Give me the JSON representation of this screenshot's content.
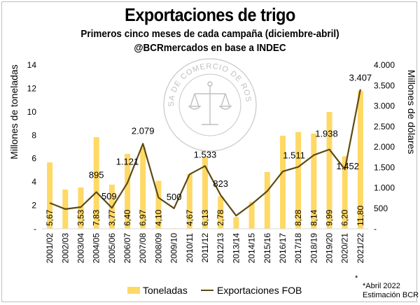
{
  "header": {
    "title": "Exportaciones de trigo",
    "subtitle1": "Primeros cinco meses de cada campaña (diciembre-abril)",
    "subtitle2": "@BCRmercados en base a INDEC"
  },
  "watermark": {
    "text_top": "BOLSA DE COMERCIO DE ROSARIO",
    "icon": "scales-of-justice-icon"
  },
  "chart_data": {
    "type": "bar+line",
    "categories": [
      "2001/02",
      "2002/03",
      "2003/04",
      "2004/05",
      "2005/06",
      "2006/07",
      "2007/08",
      "2008/09",
      "2009/10",
      "2010/11",
      "2011/12",
      "2012/13",
      "2013/14",
      "2014/15",
      "2015/16",
      "2016/17",
      "2017/18",
      "2018/19",
      "2019/20",
      "2020/21",
      "2021/22"
    ],
    "series": [
      {
        "name": "Toneladas",
        "type": "bar",
        "axis": "left",
        "color": "#FFD966",
        "values": [
          5.67,
          3.35,
          3.53,
          7.83,
          3.77,
          6.4,
          6.97,
          4.1,
          0.05,
          4.67,
          6.13,
          2.78,
          1.0,
          2.3,
          4.85,
          7.95,
          8.28,
          8.14,
          9.99,
          6.2,
          11.8
        ],
        "labels": [
          "5,67",
          "",
          "3,53",
          "7,83",
          "3,77",
          "6,40",
          "6,97",
          "4,10",
          "",
          "4,67",
          "6,13",
          "2,78",
          "",
          "",
          "",
          "",
          "8,28",
          "8,14",
          "9,99",
          "6,20",
          "11,80"
        ]
      },
      {
        "name": "Exportaciones FOB",
        "type": "line",
        "axis": "right",
        "color": "#5C4A14",
        "values": [
          630,
          480,
          530,
          895,
          509,
          1121,
          2079,
          760,
          500,
          1330,
          1533,
          823,
          320,
          600,
          920,
          1400,
          1511,
          1800,
          1938,
          1452,
          3407
        ],
        "labels": [
          "",
          "",
          "",
          "895",
          "509",
          "1.121",
          "2.079",
          "",
          "500",
          "",
          "1.533",
          "823",
          "",
          "",
          "",
          "",
          "1.511",
          "",
          "1.938",
          "1.452",
          "3.407"
        ]
      }
    ],
    "yleft": {
      "label": "Millones de toneladas",
      "lim": [
        0,
        14
      ],
      "ticks": [
        0,
        2,
        4,
        6,
        8,
        10,
        12,
        14
      ],
      "tick_labels": [
        "-",
        "2",
        "4",
        "6",
        "8",
        "10",
        "12",
        "14"
      ]
    },
    "yright": {
      "label": "Millones de dólares",
      "lim": [
        0,
        4000
      ],
      "ticks": [
        0,
        500,
        1000,
        1500,
        2000,
        2500,
        3000,
        3500,
        4000
      ],
      "tick_labels": [
        "-",
        "500",
        "1.000",
        "1.500",
        "2.000",
        "2.500",
        "3.000",
        "3.500",
        "4.000"
      ]
    },
    "grid": false,
    "legend_position": "bottom"
  },
  "notes": {
    "star": "*",
    "line1": "*Abril 2022",
    "line2": "Estimación BCR"
  }
}
